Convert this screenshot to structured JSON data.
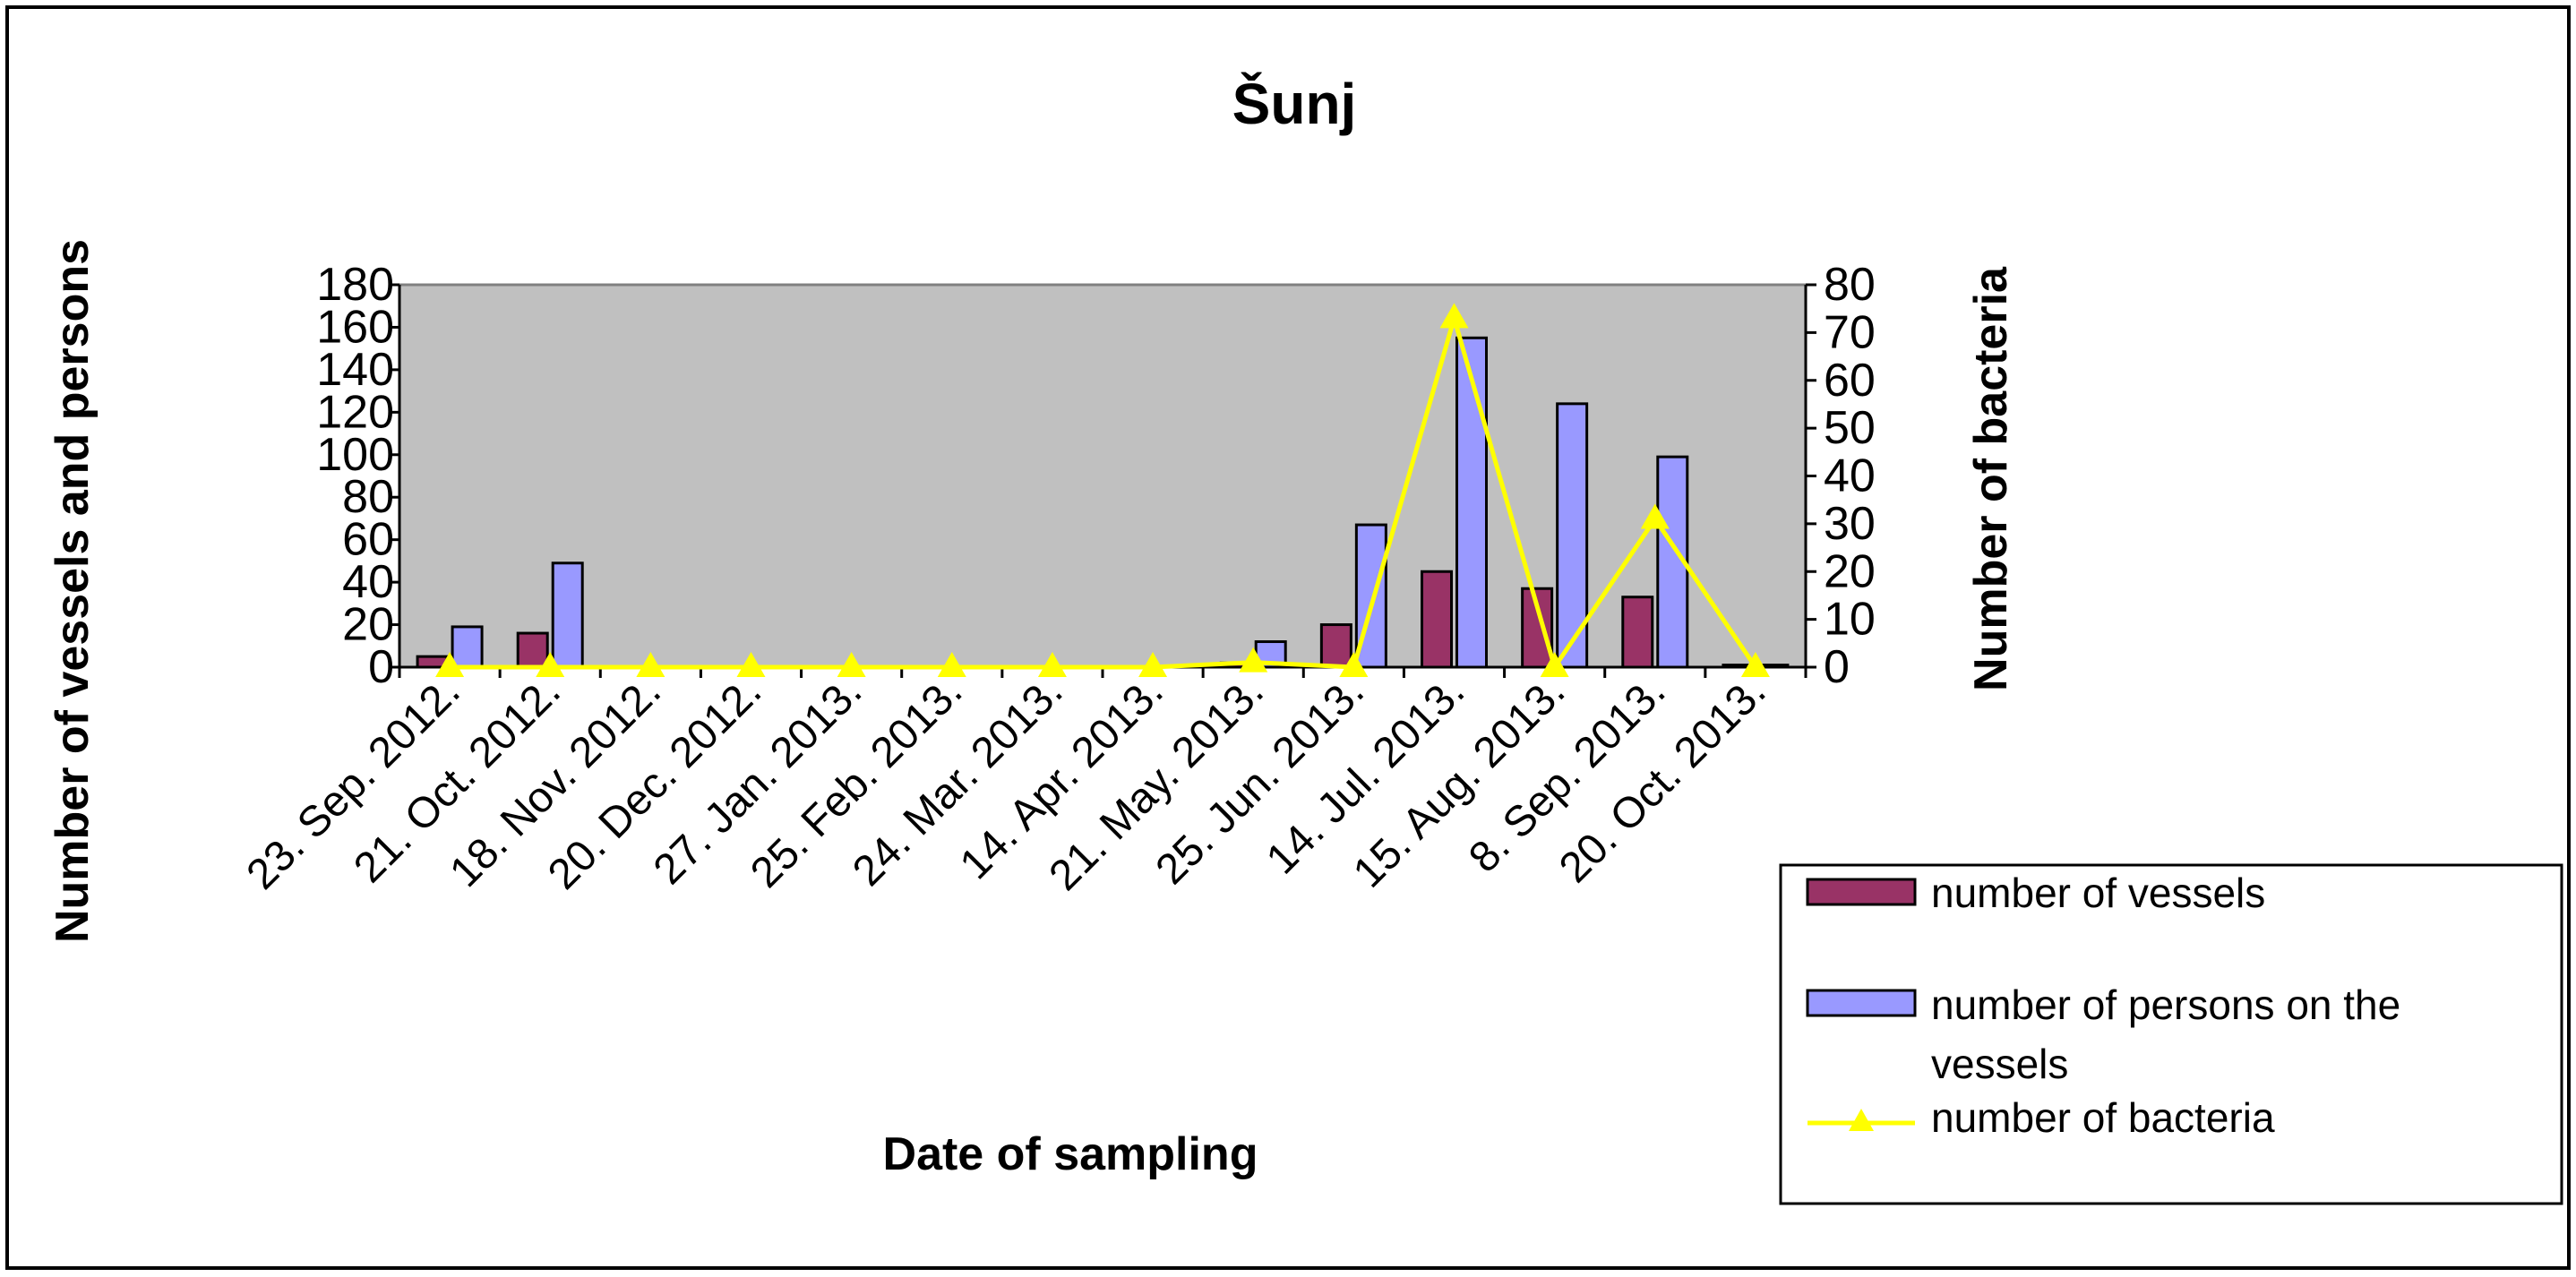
{
  "chart_data": {
    "type": "bar",
    "title": "Šunj",
    "xlabel": "Date of sampling",
    "ylabel": "Number of vessels and persons",
    "y2label": "Number of bacteria",
    "ylim": [
      0,
      180
    ],
    "y2lim": [
      0,
      80
    ],
    "yticks": [
      "0",
      "20",
      "40",
      "60",
      "80",
      "100",
      "120",
      "140",
      "160",
      "180"
    ],
    "y2ticks": [
      "0",
      "10",
      "20",
      "30",
      "40",
      "50",
      "60",
      "70",
      "80"
    ],
    "categories": [
      "23. Sep. 2012.",
      "21. Oct. 2012.",
      "18. Nov. 2012.",
      "20. Dec. 2012.",
      "27. Jan. 2013.",
      "25. Feb. 2013.",
      "24. Mar. 2013.",
      "14. Apr. 2013.",
      "21. May. 2013.",
      "25. Jun. 2013.",
      "14. Jul. 2013.",
      "15. Aug. 2013.",
      "8. Sep. 2013.",
      "20. Oct. 2013."
    ],
    "series": [
      {
        "name": "number of vessels",
        "type": "bar",
        "axis": "left",
        "color": "#993366",
        "values": [
          5,
          16,
          0,
          0,
          0,
          0,
          0,
          0,
          2,
          20,
          45,
          37,
          33,
          1
        ]
      },
      {
        "name": "number of persons on the vessels",
        "type": "bar",
        "axis": "left",
        "color": "#9999ff",
        "values": [
          19,
          49,
          0,
          0,
          0,
          0,
          0,
          0,
          12,
          67,
          155,
          124,
          99,
          1
        ]
      },
      {
        "name": "number of bacteria",
        "type": "line",
        "axis": "right",
        "marker": "triangle",
        "color": "#ffff00",
        "values": [
          0,
          0,
          0,
          0,
          0,
          0,
          0,
          0,
          1,
          0,
          73,
          0,
          31,
          0
        ]
      }
    ],
    "legend_position": "bottom-right",
    "plot_background": "#c0c0c0",
    "grid": false
  }
}
